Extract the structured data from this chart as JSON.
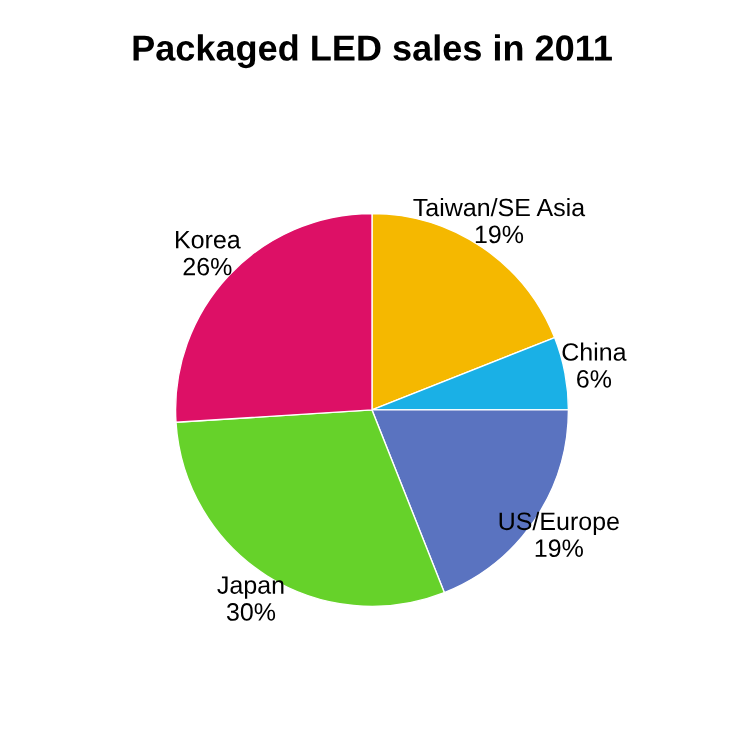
{
  "chart_data": {
    "type": "pie",
    "title": "Packaged LED sales in 2011",
    "categories": [
      "Taiwan/SE Asia",
      "China",
      "US/Europe",
      "Japan",
      "Korea"
    ],
    "values": [
      19,
      6,
      19,
      30,
      26
    ],
    "value_labels": [
      "19%",
      "6%",
      "19%",
      "30%",
      "26%"
    ],
    "colors": [
      "#f5b800",
      "#1ab0e6",
      "#5a73c0",
      "#66d22a",
      "#dd1066"
    ]
  }
}
